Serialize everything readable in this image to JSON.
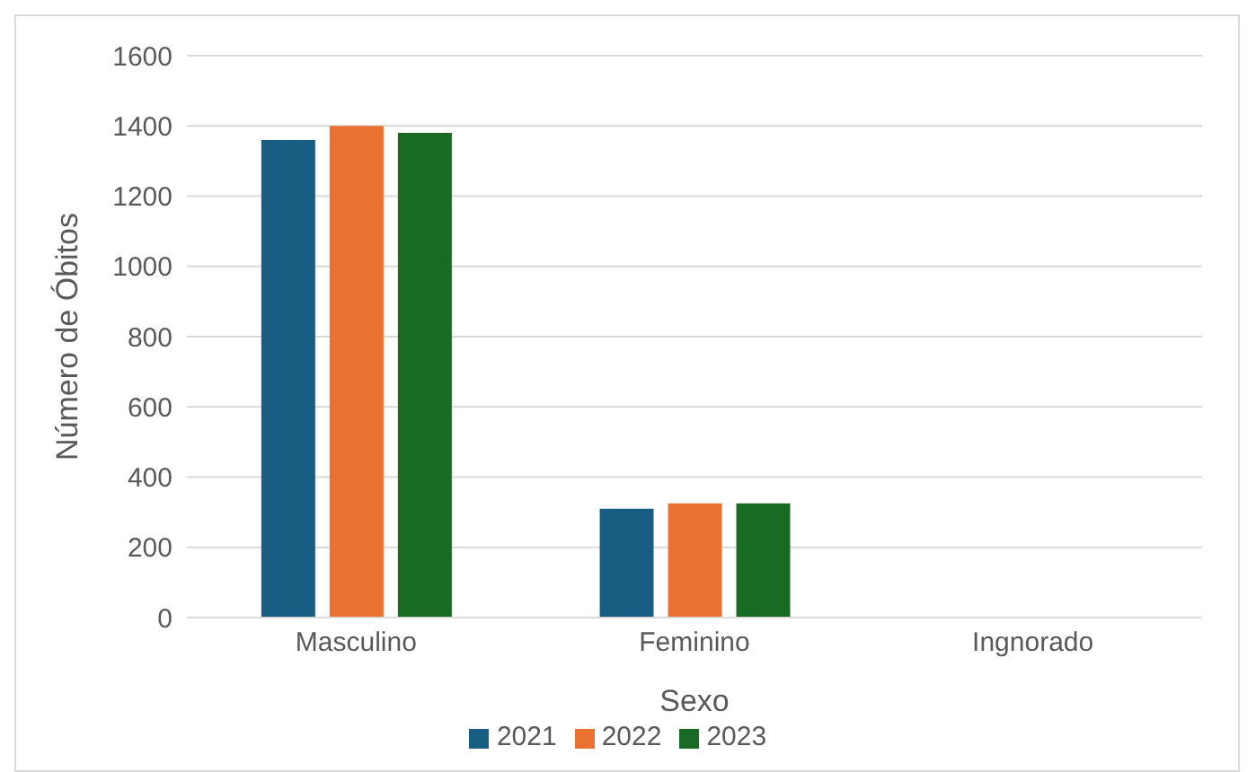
{
  "chart_data": {
    "type": "bar",
    "xlabel": "Sexo",
    "ylabel": "Número de Óbitos",
    "categories": [
      "Masculino",
      "Feminino",
      "Ingnorado"
    ],
    "series": [
      {
        "name": "2021",
        "color": "#175e82",
        "values": [
          1360,
          310,
          0
        ]
      },
      {
        "name": "2022",
        "color": "#e97132",
        "values": [
          1400,
          325,
          0
        ]
      },
      {
        "name": "2023",
        "color": "#196b24",
        "values": [
          1380,
          325,
          0
        ]
      }
    ],
    "ylim": [
      0,
      1600
    ],
    "yticks": [
      0,
      200,
      400,
      600,
      800,
      1000,
      1200,
      1400,
      1600
    ],
    "grid": "y",
    "legend": "bottom"
  }
}
